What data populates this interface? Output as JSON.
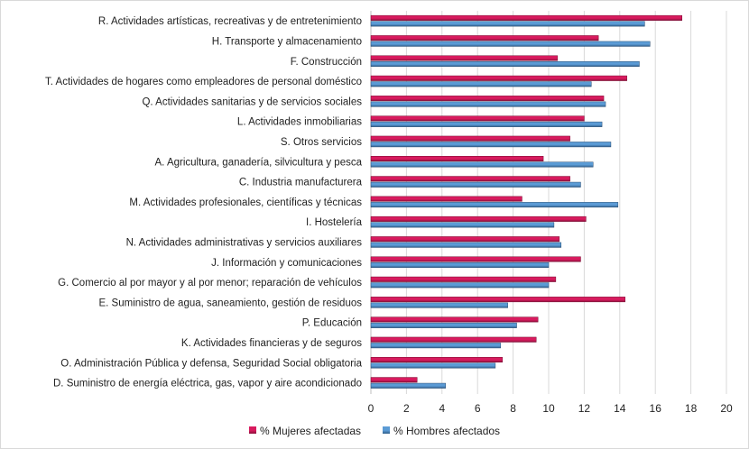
{
  "chart_data": {
    "type": "bar",
    "orientation": "horizontal",
    "categories": [
      "R. Actividades artísticas, recreativas y de entretenimiento",
      "H. Transporte y almacenamiento",
      "F. Construcción",
      "T. Actividades de hogares como empleadores de personal doméstico",
      "Q. Actividades sanitarias y de servicios sociales",
      "L. Actividades inmobiliarias",
      "S. Otros servicios",
      "A. Agricultura, ganadería, silvicultura y pesca",
      "C. Industria manufacturera",
      "M. Actividades profesionales, científicas y técnicas",
      "I. Hostelería",
      "N. Actividades administrativas y servicios auxiliares",
      "J. Información y comunicaciones",
      "G. Comercio al por mayor y al por menor; reparación de vehículos",
      "E. Suministro de agua, saneamiento, gestión de residuos",
      "P. Educación",
      "K. Actividades financieras y de seguros",
      "O. Administración Pública y defensa, Seguridad Social obligatoria",
      "D. Suministro de energía eléctrica, gas, vapor y aire acondicionado"
    ],
    "series": [
      {
        "name": "% Mujeres afectadas",
        "color": "#d81b5e",
        "values": [
          17.5,
          12.8,
          10.5,
          14.4,
          13.1,
          12.0,
          11.2,
          9.7,
          11.2,
          8.5,
          12.1,
          10.6,
          11.8,
          10.4,
          14.3,
          9.4,
          9.3,
          7.4,
          2.6
        ]
      },
      {
        "name": "% Hombres afectados",
        "color": "#5b9bd5",
        "values": [
          15.4,
          15.7,
          15.1,
          12.4,
          13.2,
          13.0,
          13.5,
          12.5,
          11.8,
          13.9,
          10.3,
          10.7,
          10.0,
          10.0,
          7.7,
          8.2,
          7.3,
          7.0,
          4.2
        ]
      }
    ],
    "xlim": [
      0,
      20
    ],
    "xticks": [
      "0",
      "2",
      "4",
      "6",
      "8",
      "10",
      "12",
      "14",
      "16",
      "18",
      "20"
    ],
    "grid": true,
    "legend": "bottom"
  }
}
